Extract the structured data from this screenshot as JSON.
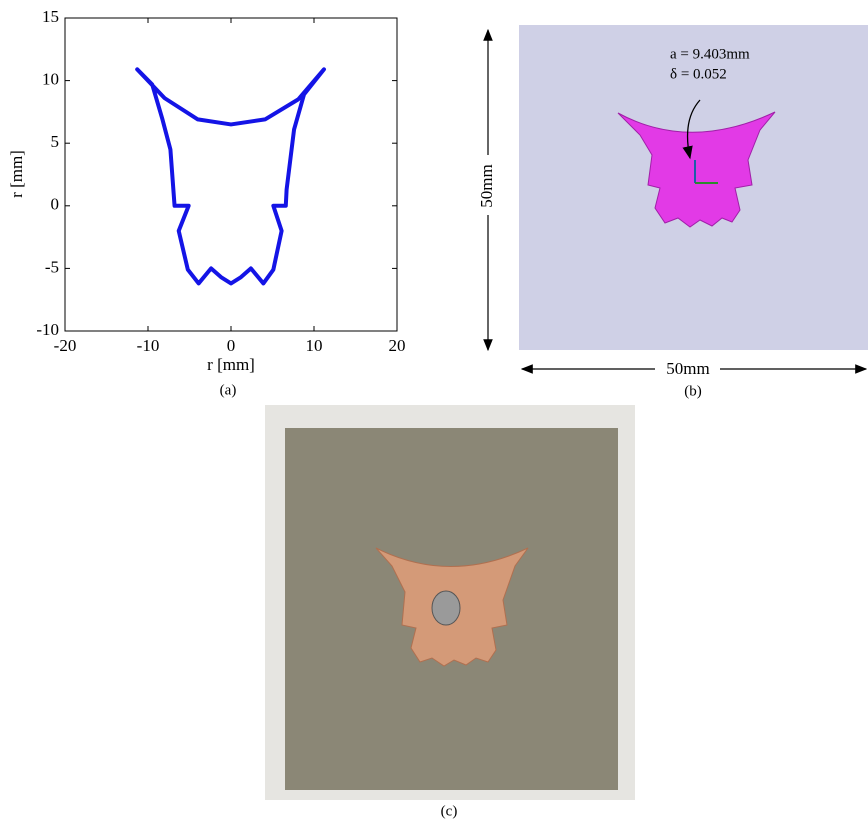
{
  "chart_data": {
    "type": "line",
    "xlabel": "r [mm]",
    "ylabel": "r [mm]",
    "caption": "(a)",
    "xlim": [
      -20,
      20
    ],
    "ylim": [
      -10,
      15
    ],
    "xticks": [
      -20,
      -10,
      0,
      10,
      20
    ],
    "yticks": [
      -10,
      -5,
      0,
      5,
      10,
      15
    ],
    "series": [
      {
        "color": "#1414e6",
        "x": [
          -11.3,
          -9.5,
          -8.3,
          -7.3,
          -6.8,
          -5.1,
          -6.3,
          -5.2,
          -3.9,
          -2.4,
          -1.2,
          0,
          1.2,
          2.4,
          3.9,
          5.1,
          6.1,
          5.1,
          6.6,
          6.7,
          7.6,
          8.8,
          11.2,
          8.1,
          4.1,
          0,
          -4,
          -8
        ],
        "values": [
          10.9,
          9.7,
          7,
          4.5,
          0,
          0,
          -2,
          -5.1,
          -6.2,
          -5,
          -5.7,
          -6.2,
          -5.7,
          -5,
          -6.2,
          -5.1,
          -2,
          0,
          0,
          1.3,
          6.1,
          8.9,
          10.9,
          8.5,
          6.9,
          6.5,
          6.9,
          8.6
        ]
      }
    ]
  },
  "diagram": {
    "annotations": [
      "a = 9.403mm",
      "δ = 0.052"
    ],
    "height_label": "50mm",
    "width_label": "50mm",
    "caption": "(b)"
  },
  "photo": {
    "caption": "(c)"
  }
}
